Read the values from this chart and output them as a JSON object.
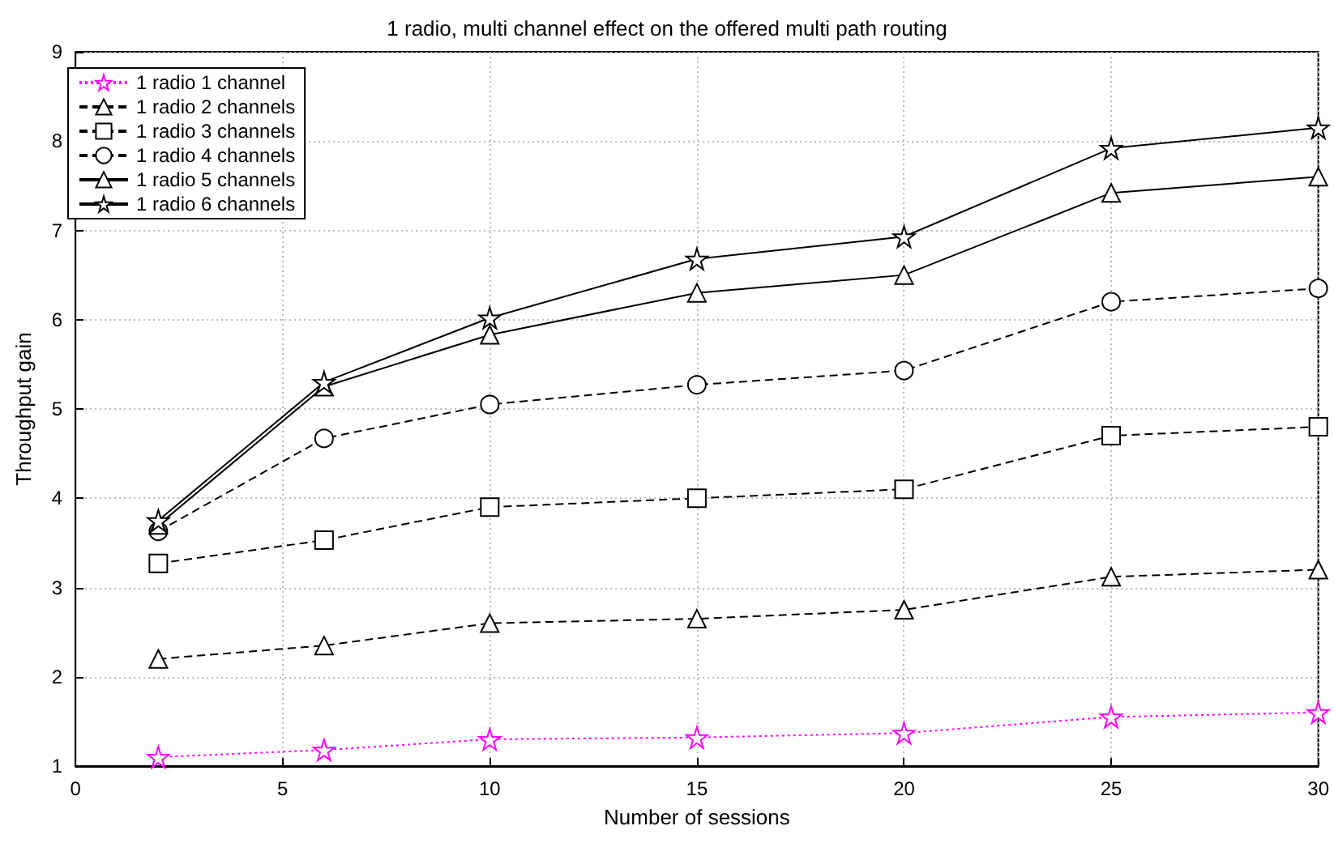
{
  "chart_data": {
    "type": "line",
    "title": "1 radio, multi channel effect on the offered multi path routing",
    "xlabel": "Number of sessions",
    "ylabel": "Throughput gain",
    "x": [
      2,
      6,
      10,
      15,
      20,
      25,
      30
    ],
    "series": [
      {
        "name": "1 radio 1 channel",
        "color": "#ff00ff",
        "marker": "star",
        "line_style": "dotted",
        "values": [
          1.1,
          1.18,
          1.3,
          1.32,
          1.37,
          1.55,
          1.6
        ]
      },
      {
        "name": "1 radio 2 channels",
        "color": "#000000",
        "marker": "triangle",
        "line_style": "dashed",
        "values": [
          2.2,
          2.35,
          2.6,
          2.65,
          2.75,
          3.12,
          3.2
        ]
      },
      {
        "name": "1 radio 3 channels",
        "color": "#000000",
        "marker": "square",
        "line_style": "dashed",
        "values": [
          3.27,
          3.53,
          3.9,
          4.0,
          4.1,
          4.7,
          4.8
        ]
      },
      {
        "name": "1 radio 4 channels",
        "color": "#000000",
        "marker": "circle",
        "line_style": "dashed",
        "values": [
          3.63,
          4.67,
          5.05,
          5.27,
          5.43,
          6.2,
          6.35
        ]
      },
      {
        "name": "1 radio 5 channels",
        "color": "#000000",
        "marker": "triangle",
        "line_style": "solid",
        "values": [
          3.7,
          5.25,
          5.83,
          6.3,
          6.5,
          7.42,
          7.6
        ]
      },
      {
        "name": "1 radio 6 channels",
        "color": "#000000",
        "marker": "star",
        "line_style": "solid",
        "values": [
          3.75,
          5.3,
          6.02,
          6.68,
          6.93,
          7.92,
          8.15
        ]
      }
    ],
    "xlim": [
      0,
      30
    ],
    "xticks": [
      0,
      5,
      10,
      15,
      20,
      25,
      30
    ],
    "ylim": [
      1,
      9
    ],
    "yticks": [
      1,
      2,
      3,
      4,
      5,
      6,
      7,
      8,
      9
    ],
    "grid": true,
    "legend": "top left"
  }
}
